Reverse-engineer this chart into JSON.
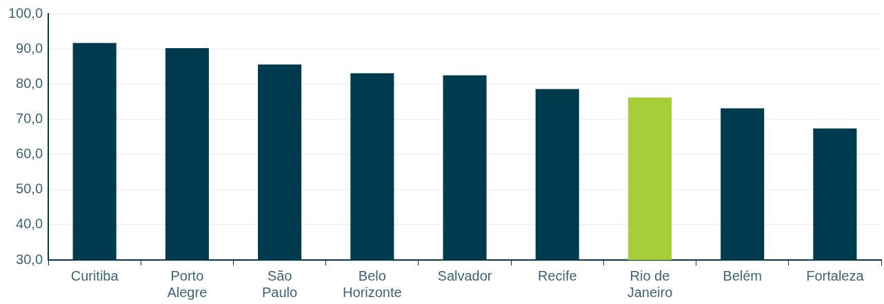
{
  "chart_data": {
    "type": "bar",
    "categories": [
      "Curitiba",
      "Porto Alegre",
      "São Paulo",
      "Belo Horizonte",
      "Salvador",
      "Recife",
      "Rio de Janeiro",
      "Belém",
      "Fortaleza"
    ],
    "values": [
      91.7,
      90.2,
      85.6,
      83.1,
      82.5,
      78.6,
      76.2,
      73.1,
      67.4
    ],
    "colors": [
      "#003a4f",
      "#003a4f",
      "#003a4f",
      "#003a4f",
      "#003a4f",
      "#003a4f",
      "#a6ce39",
      "#003a4f",
      "#003a4f"
    ],
    "ylim": [
      30,
      100
    ],
    "yticks": [
      {
        "value": 30,
        "label": "30,0"
      },
      {
        "value": 40,
        "label": "40,0"
      },
      {
        "value": 50,
        "label": "50,0"
      },
      {
        "value": 60,
        "label": "60,0"
      },
      {
        "value": 70,
        "label": "70,0"
      },
      {
        "value": 80,
        "label": "80,0"
      },
      {
        "value": 90,
        "label": "90,0"
      },
      {
        "value": 100,
        "label": "100,0"
      }
    ],
    "grid": "y"
  }
}
